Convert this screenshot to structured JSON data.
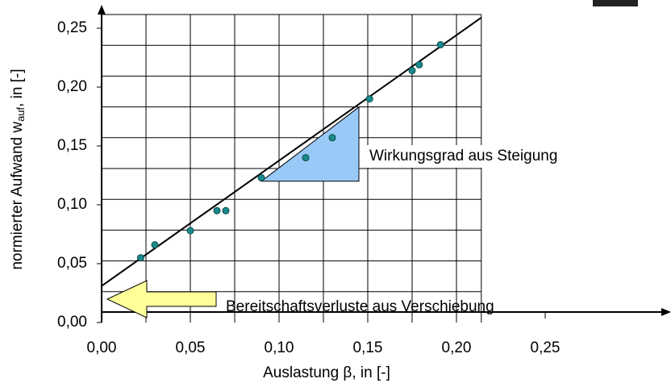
{
  "chart_data": {
    "type": "scatter",
    "x_label": "Auslastung β, in [-]",
    "y_label": {
      "main": "normierter Aufwand w",
      "sub": "auf",
      "tail": ", in [-]"
    },
    "x": [
      0.022,
      0.03,
      0.05,
      0.065,
      0.07,
      0.09,
      0.115,
      0.13,
      0.151,
      0.175,
      0.179,
      0.191
    ],
    "values": [
      0.055,
      0.066,
      0.078,
      0.095,
      0.095,
      0.123,
      0.14,
      0.157,
      0.19,
      0.214,
      0.219,
      0.236
    ],
    "color": "#1a8a8a",
    "fit_line": {
      "x": [
        0,
        0.214
      ],
      "y": [
        0.031,
        0.259
      ]
    },
    "triangle": {
      "x": [
        0.09,
        0.145,
        0.145
      ],
      "y": [
        0.12,
        0.12,
        0.183
      ],
      "color": "#99c9f7"
    },
    "annotations": [
      "Wirkungsgrad aus Steigung",
      "Bereitschaftsverluste aus Verschiebung"
    ],
    "xlim": [
      0,
      0.3
    ],
    "ylim": [
      0,
      0.25
    ],
    "xticks": [
      {
        "value": 0,
        "label": "0,00"
      },
      {
        "value": 0.05,
        "label": "0,05"
      },
      {
        "value": 0.1,
        "label": "0,10"
      },
      {
        "value": 0.15,
        "label": "0,15"
      },
      {
        "value": 0.2,
        "label": "0,20"
      },
      {
        "value": 0.25,
        "label": "0,25"
      }
    ],
    "yticks": [
      {
        "value": 0,
        "label": "0,00"
      },
      {
        "value": 0.05,
        "label": "0,05"
      },
      {
        "value": 0.1,
        "label": "0,10"
      },
      {
        "value": 0.15,
        "label": "0,15"
      },
      {
        "value": 0.2,
        "label": "0,20"
      },
      {
        "value": 0.25,
        "label": "0,25"
      }
    ],
    "x_gridlines": [
      0.025,
      0.05,
      0.075,
      0.1,
      0.125,
      0.15,
      0.175,
      0.2
    ],
    "y_gridlines": [
      0.025,
      0.05,
      0.075,
      0.1,
      0.125,
      0.15,
      0.175,
      0.2,
      0.225,
      0.25
    ],
    "grid": true
  }
}
